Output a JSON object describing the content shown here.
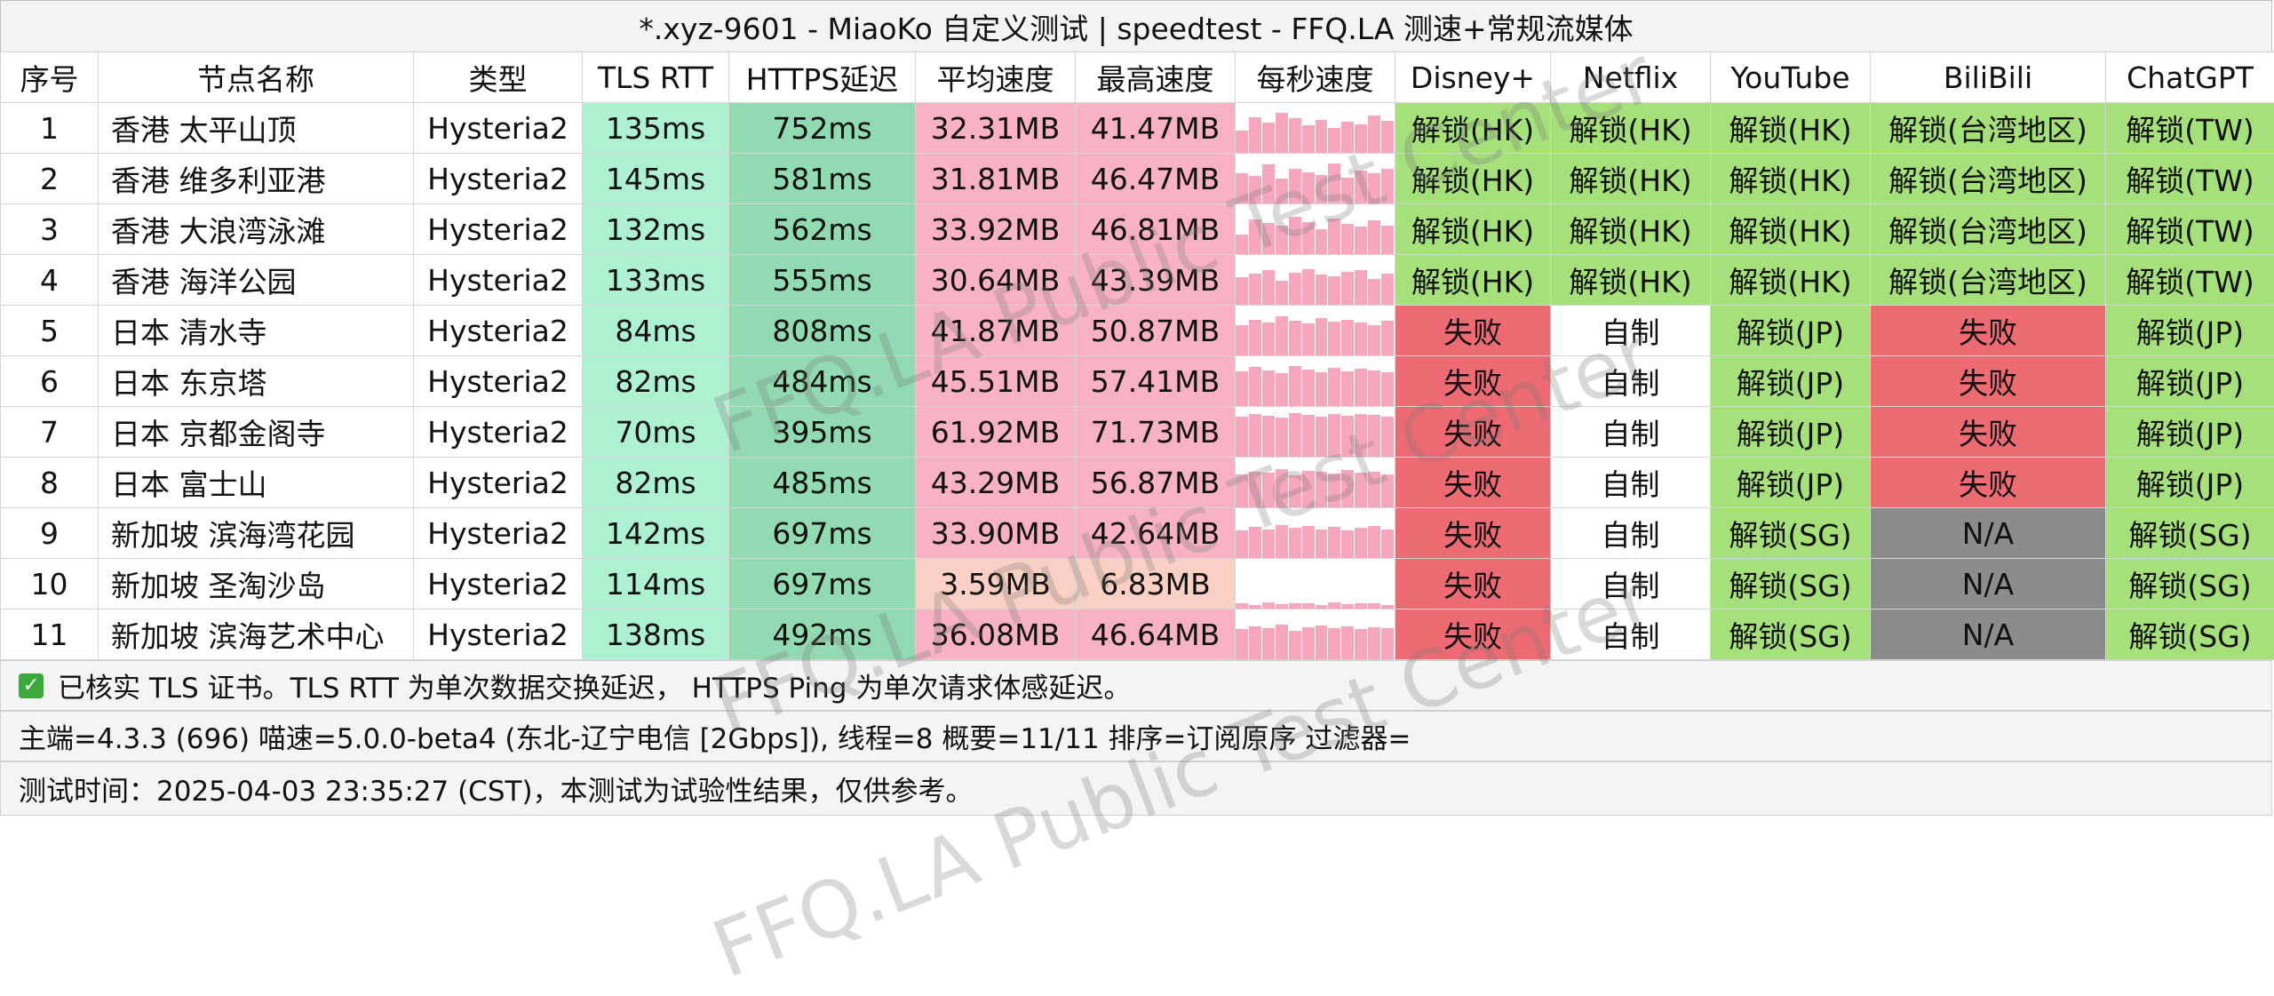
{
  "title": "*.xyz-9601 - MiaoKo 自定义测试 | speedtest - FFQ.LA 测速+常规流媒体",
  "headers": [
    "序号",
    "节点名称",
    "类型",
    "TLS RTT",
    "HTTPS延迟",
    "平均速度",
    "最高速度",
    "每秒速度",
    "Disney+",
    "Netflix",
    "YouTube",
    "BiliBili",
    "ChatGPT"
  ],
  "rows": [
    {
      "idx": "1",
      "name": "香港 太平山顶",
      "type": "Hysteria2",
      "tls": "135ms",
      "https": "752ms",
      "avg": "32.31MB",
      "max": "41.47MB",
      "disney": "解锁(HK)",
      "netflix": "解锁(HK)",
      "youtube": "解锁(HK)",
      "bilibili": "解锁(台湾地区)",
      "chatgpt": "解锁(TW)"
    },
    {
      "idx": "2",
      "name": "香港 维多利亚港",
      "type": "Hysteria2",
      "tls": "145ms",
      "https": "581ms",
      "avg": "31.81MB",
      "max": "46.47MB",
      "disney": "解锁(HK)",
      "netflix": "解锁(HK)",
      "youtube": "解锁(HK)",
      "bilibili": "解锁(台湾地区)",
      "chatgpt": "解锁(TW)"
    },
    {
      "idx": "3",
      "name": "香港 大浪湾泳滩",
      "type": "Hysteria2",
      "tls": "132ms",
      "https": "562ms",
      "avg": "33.92MB",
      "max": "46.81MB",
      "disney": "解锁(HK)",
      "netflix": "解锁(HK)",
      "youtube": "解锁(HK)",
      "bilibili": "解锁(台湾地区)",
      "chatgpt": "解锁(TW)"
    },
    {
      "idx": "4",
      "name": "香港 海洋公园",
      "type": "Hysteria2",
      "tls": "133ms",
      "https": "555ms",
      "avg": "30.64MB",
      "max": "43.39MB",
      "disney": "解锁(HK)",
      "netflix": "解锁(HK)",
      "youtube": "解锁(HK)",
      "bilibili": "解锁(台湾地区)",
      "chatgpt": "解锁(TW)"
    },
    {
      "idx": "5",
      "name": "日本 清水寺",
      "type": "Hysteria2",
      "tls": "84ms",
      "https": "808ms",
      "avg": "41.87MB",
      "max": "50.87MB",
      "disney": "失败",
      "netflix": "自制",
      "youtube": "解锁(JP)",
      "bilibili": "失败",
      "chatgpt": "解锁(JP)"
    },
    {
      "idx": "6",
      "name": "日本 东京塔",
      "type": "Hysteria2",
      "tls": "82ms",
      "https": "484ms",
      "avg": "45.51MB",
      "max": "57.41MB",
      "disney": "失败",
      "netflix": "自制",
      "youtube": "解锁(JP)",
      "bilibili": "失败",
      "chatgpt": "解锁(JP)"
    },
    {
      "idx": "7",
      "name": "日本 京都金阁寺",
      "type": "Hysteria2",
      "tls": "70ms",
      "https": "395ms",
      "avg": "61.92MB",
      "max": "71.73MB",
      "disney": "失败",
      "netflix": "自制",
      "youtube": "解锁(JP)",
      "bilibili": "失败",
      "chatgpt": "解锁(JP)"
    },
    {
      "idx": "8",
      "name": "日本 富士山",
      "type": "Hysteria2",
      "tls": "82ms",
      "https": "485ms",
      "avg": "43.29MB",
      "max": "56.87MB",
      "disney": "失败",
      "netflix": "自制",
      "youtube": "解锁(JP)",
      "bilibili": "失败",
      "chatgpt": "解锁(JP)"
    },
    {
      "idx": "9",
      "name": "新加坡 滨海湾花园",
      "type": "Hysteria2",
      "tls": "142ms",
      "https": "697ms",
      "avg": "33.90MB",
      "max": "42.64MB",
      "disney": "失败",
      "netflix": "自制",
      "youtube": "解锁(SG)",
      "bilibili": "N/A",
      "chatgpt": "解锁(SG)"
    },
    {
      "idx": "10",
      "name": "新加坡 圣淘沙岛",
      "type": "Hysteria2",
      "tls": "114ms",
      "https": "697ms",
      "avg": "3.59MB",
      "max": "6.83MB",
      "disney": "失败",
      "netflix": "自制",
      "youtube": "解锁(SG)",
      "bilibili": "N/A",
      "chatgpt": "解锁(SG)"
    },
    {
      "idx": "11",
      "name": "新加坡 滨海艺术中心",
      "type": "Hysteria2",
      "tls": "138ms",
      "https": "492ms",
      "avg": "36.08MB",
      "max": "46.64MB",
      "disney": "失败",
      "netflix": "自制",
      "youtube": "解锁(SG)",
      "bilibili": "N/A",
      "chatgpt": "解锁(SG)"
    }
  ],
  "footer": {
    "cert_note": "已核实 TLS 证书。TLS RTT 为单次数据交换延迟， HTTPS Ping 为单次请求体感延迟。",
    "info": "主端=4.3.3 (696) 喵速=5.0.0-beta4 (东北-辽宁电信 [2Gbps]), 线程=8 概要=11/11 排序=订阅原序 过滤器=",
    "time": "测试时间：2025-04-03 23:35:27 (CST)，本测试为试验性结果，仅供参考。"
  },
  "watermark": "FFQ.LA Public Test Center",
  "colors": {
    "tls": "#aef0d2",
    "https": "#92dab1",
    "speed": "#f8b2c4",
    "speed_low": "#fbd0c4",
    "unlock": "#a5e07b",
    "fail": "#ee6b73",
    "na": "#8c8c8c",
    "self": "#ffffff"
  }
}
